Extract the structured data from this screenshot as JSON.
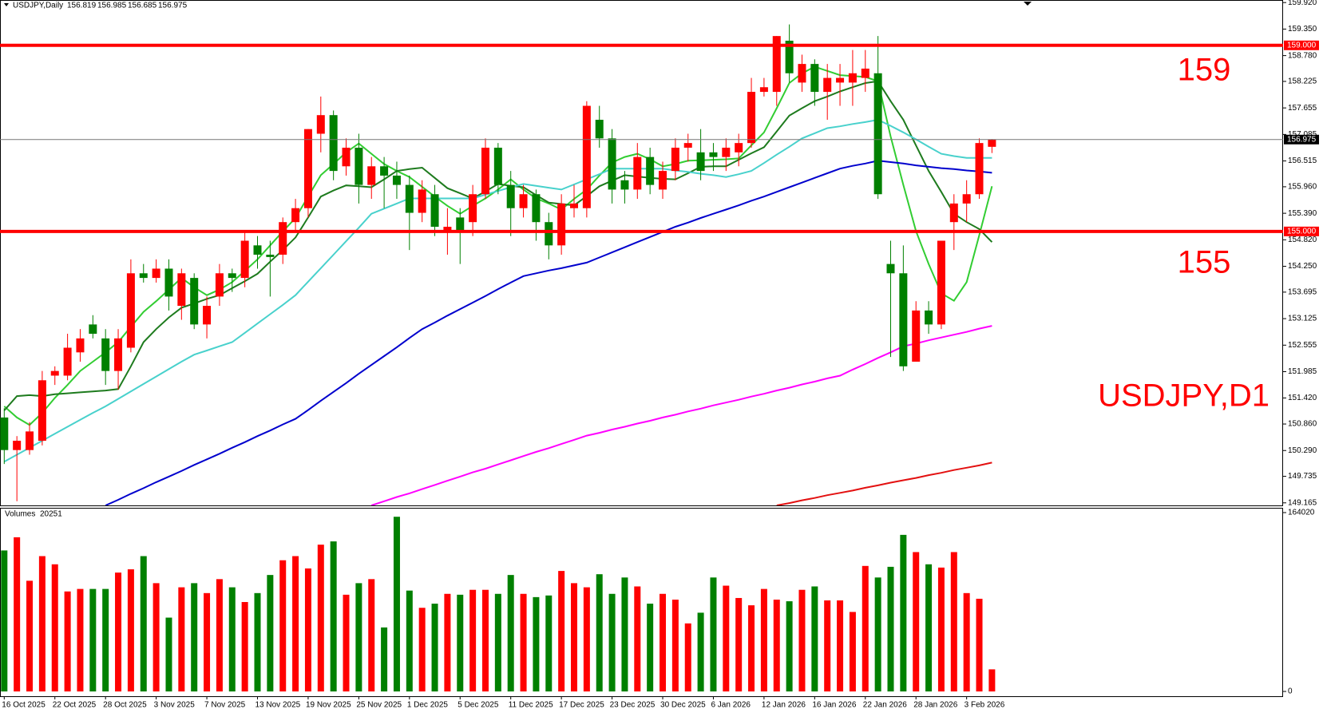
{
  "chart_data": {
    "type": "candlestick",
    "title": "USDJPY,Daily",
    "categories": [
      "16 Oct 2025",
      null,
      null,
      null,
      "22 Oct 2025",
      null,
      null,
      null,
      "28 Oct 2025",
      null,
      null,
      null,
      "3 Nov 2025",
      null,
      null,
      null,
      "7 Nov 2025",
      null,
      null,
      null,
      "13 Nov 2025",
      null,
      null,
      null,
      "19 Nov 2025",
      null,
      null,
      null,
      "25 Nov 2025",
      null,
      null,
      null,
      "1 Dec 2025",
      null,
      null,
      null,
      "5 Dec 2025",
      null,
      null,
      null,
      "11 Dec 2025",
      null,
      null,
      null,
      "17 Dec 2025",
      null,
      null,
      null,
      "23 Dec 2025",
      null,
      null,
      null,
      "30 Dec 2025",
      null,
      null,
      null,
      "6 Jan 2026",
      null,
      null,
      null,
      "12 Jan 2026",
      null,
      null,
      null,
      "16 Jan 2026",
      null,
      null,
      null,
      "22 Jan 2026",
      null,
      null,
      null,
      "28 Jan 2026",
      null,
      null,
      null,
      "3 Feb 2026",
      null,
      null
    ],
    "open": [
      151.0,
      150.3,
      150.3,
      150.5,
      151.9,
      151.9,
      152.4,
      153.0,
      152.7,
      152.0,
      152.5,
      154.1,
      154.0,
      154.2,
      153.4,
      154.0,
      153.0,
      153.6,
      154.1,
      154.0,
      154.7,
      154.5,
      154.5,
      155.2,
      155.5,
      157.1,
      157.5,
      156.4,
      156.8,
      156.0,
      156.4,
      156.2,
      156.0,
      155.4,
      155.8,
      155.0,
      155.3,
      155.2,
      155.8,
      156.8,
      156.0,
      155.5,
      155.8,
      155.2,
      154.7,
      155.5,
      155.5,
      157.4,
      157.0,
      156.1,
      155.9,
      156.6,
      155.9,
      156.3,
      156.8,
      156.7,
      156.7,
      156.6,
      156.7,
      156.9,
      158.0,
      158.0,
      159.1,
      158.2,
      158.6,
      158.0,
      158.2,
      158.2,
      158.3,
      158.4,
      154.3,
      154.1,
      152.2,
      153.3,
      153.0,
      155.2,
      155.6,
      155.8,
      156.819
    ],
    "high": [
      151.2,
      150.6,
      150.9,
      152.0,
      152.1,
      152.8,
      152.9,
      153.2,
      152.9,
      152.9,
      154.4,
      154.3,
      154.4,
      154.4,
      154.2,
      154.1,
      153.6,
      154.3,
      154.2,
      155.0,
      154.9,
      154.8,
      155.3,
      155.7,
      157.2,
      157.9,
      157.6,
      157.0,
      157.1,
      156.6,
      156.6,
      156.5,
      156.2,
      156.1,
      156.0,
      155.5,
      155.5,
      156.0,
      157.0,
      156.9,
      156.3,
      156.0,
      155.9,
      155.4,
      155.8,
      156.0,
      157.8,
      157.7,
      157.2,
      156.3,
      156.9,
      156.8,
      156.5,
      157.0,
      157.1,
      157.2,
      156.9,
      157.0,
      157.1,
      158.3,
      158.3,
      159.2,
      159.45,
      158.8,
      158.7,
      158.6,
      158.6,
      158.9,
      158.9,
      159.2,
      154.8,
      154.7,
      153.5,
      153.5,
      154.8,
      155.8,
      156.1,
      157.0,
      156.985
    ],
    "low": [
      150.0,
      149.2,
      150.2,
      150.4,
      151.7,
      151.8,
      152.2,
      152.7,
      151.7,
      151.6,
      152.4,
      153.9,
      153.9,
      153.3,
      153.1,
      152.9,
      152.7,
      153.4,
      153.7,
      153.8,
      154.2,
      153.6,
      154.3,
      155.0,
      155.3,
      156.7,
      156.1,
      156.2,
      155.6,
      155.7,
      155.5,
      155.7,
      154.6,
      155.2,
      154.9,
      154.5,
      154.3,
      154.9,
      155.7,
      155.8,
      154.9,
      155.3,
      154.8,
      154.4,
      154.5,
      155.3,
      155.3,
      156.8,
      155.6,
      155.6,
      155.7,
      155.8,
      155.7,
      156.1,
      156.5,
      156.1,
      156.3,
      156.3,
      156.4,
      156.8,
      157.9,
      157.7,
      158.2,
      158.0,
      157.7,
      157.4,
      157.7,
      157.7,
      158.0,
      155.7,
      152.3,
      152.0,
      152.2,
      152.8,
      152.9,
      154.6,
      155.2,
      155.7,
      156.685
    ],
    "close": [
      150.3,
      150.5,
      150.7,
      151.8,
      152.0,
      152.5,
      152.7,
      152.8,
      152.0,
      152.7,
      154.1,
      154.0,
      154.2,
      153.6,
      154.1,
      153.0,
      153.4,
      154.1,
      154.0,
      154.8,
      154.5,
      154.45,
      155.2,
      155.5,
      157.2,
      157.5,
      156.3,
      156.8,
      156.0,
      156.4,
      156.2,
      156.0,
      155.4,
      155.9,
      155.1,
      155.1,
      155.0,
      155.8,
      156.8,
      156.0,
      155.5,
      155.8,
      155.2,
      154.7,
      155.6,
      155.6,
      157.7,
      157.0,
      155.9,
      155.9,
      156.6,
      156.0,
      156.3,
      156.8,
      156.9,
      156.3,
      156.6,
      156.8,
      156.9,
      158.0,
      158.1,
      159.2,
      158.4,
      158.6,
      158.0,
      158.3,
      158.3,
      158.4,
      158.5,
      155.8,
      154.1,
      152.1,
      153.3,
      153.0,
      154.8,
      155.6,
      155.8,
      156.9,
      156.975
    ],
    "up_color": "#ff0000",
    "down_color": "#008000",
    "ylim": [
      149.11,
      159.975
    ],
    "yticks": [
      {
        "value": 159.92,
        "label": "159.920"
      },
      {
        "value": 159.35,
        "label": "159.350"
      },
      {
        "value": 158.78,
        "label": "158.780"
      },
      158.225,
      157.655,
      157.085,
      156.515,
      {
        "value": 155.96,
        "label": "155.960"
      },
      {
        "value": 155.39,
        "label": "155.390"
      },
      {
        "value": 154.82,
        "label": "154.820"
      },
      {
        "value": 154.25,
        "label": "154.250"
      },
      153.695,
      153.125,
      152.555,
      151.985,
      {
        "value": 151.42,
        "label": "151.420"
      },
      {
        "value": 150.86,
        "label": "150.860"
      },
      {
        "value": 150.29,
        "label": "150.290"
      },
      149.735,
      149.165
    ],
    "levels": [
      {
        "value": 159,
        "label": "159.000"
      },
      {
        "value": 155,
        "label": "155.000"
      }
    ],
    "level_color": "#ff0000",
    "indicators": [
      {
        "color": "#32cd32",
        "values": [
          151.24,
          151.0,
          150.84,
          151.1,
          151.42,
          151.7,
          152.0,
          152.2,
          152.4,
          152.62,
          152.95,
          153.27,
          153.5,
          153.75,
          154.0,
          153.8,
          153.63,
          153.75,
          153.91,
          154.15,
          154.4,
          154.7,
          155.0,
          155.29,
          155.75,
          156.21,
          156.45,
          156.7,
          156.89,
          156.67,
          156.45,
          156.3,
          156.17,
          155.96,
          155.75,
          155.55,
          155.38,
          155.55,
          155.71,
          155.9,
          156.12,
          155.9,
          155.71,
          155.6,
          155.47,
          155.7,
          155.9,
          156.2,
          156.48,
          156.6,
          156.67,
          156.55,
          156.4,
          156.45,
          156.52,
          156.53,
          156.54,
          156.55,
          156.57,
          156.85,
          157.13,
          157.65,
          158.19,
          158.4,
          158.54,
          158.45,
          158.36,
          158.34,
          158.32,
          158.23,
          157.04,
          156.0,
          155.01,
          154.3,
          153.67,
          153.51,
          153.91,
          154.92,
          155.97
        ]
      },
      {
        "color": "#1e7b1e",
        "values": [
          151.15,
          151.46,
          151.48,
          151.46,
          151.5,
          151.52,
          151.54,
          151.56,
          151.58,
          151.61,
          152.1,
          152.62,
          152.9,
          153.15,
          153.36,
          153.45,
          153.55,
          153.63,
          153.78,
          153.93,
          154.09,
          154.35,
          154.6,
          154.87,
          155.3,
          155.75,
          155.88,
          155.99,
          155.97,
          155.95,
          156.12,
          156.3,
          156.34,
          156.37,
          156.15,
          155.93,
          155.82,
          155.71,
          155.86,
          156.02,
          155.98,
          155.95,
          155.78,
          155.62,
          155.59,
          155.56,
          155.76,
          155.97,
          156.09,
          156.21,
          156.18,
          156.15,
          156.13,
          156.12,
          156.25,
          156.39,
          156.4,
          156.4,
          156.54,
          156.68,
          156.81,
          157.15,
          157.49,
          157.65,
          157.8,
          157.9,
          158.01,
          158.1,
          158.19,
          158.23,
          157.8,
          157.4,
          156.85,
          156.3,
          155.85,
          155.38,
          155.2,
          155.05,
          154.77
        ]
      },
      {
        "color": "#48d1cc",
        "values": [
          150.05,
          150.2,
          150.35,
          150.5,
          150.65,
          150.8,
          150.95,
          151.1,
          151.24,
          151.4,
          151.56,
          151.72,
          151.88,
          152.04,
          152.2,
          152.35,
          152.44,
          152.53,
          152.62,
          152.82,
          153.02,
          153.22,
          153.42,
          153.63,
          153.92,
          154.21,
          154.5,
          154.79,
          155.08,
          155.38,
          155.49,
          155.6,
          155.71,
          155.71,
          155.71,
          155.71,
          155.71,
          155.71,
          155.79,
          155.87,
          155.95,
          156.02,
          155.98,
          155.94,
          155.9,
          156.01,
          156.12,
          156.23,
          156.35,
          156.35,
          156.35,
          156.35,
          156.35,
          156.31,
          156.28,
          156.24,
          156.21,
          156.17,
          156.23,
          156.3,
          156.47,
          156.65,
          156.82,
          157.0,
          157.11,
          157.22,
          157.26,
          157.31,
          157.35,
          157.4,
          157.27,
          157.13,
          156.98,
          156.82,
          156.67,
          156.62,
          156.58,
          156.58,
          156.58
        ]
      },
      {
        "color": "#0000cd",
        "values": [
          null,
          null,
          null,
          null,
          null,
          null,
          null,
          null,
          149.11,
          149.23,
          149.36,
          149.48,
          149.61,
          149.73,
          149.85,
          149.98,
          150.1,
          150.22,
          150.35,
          150.47,
          150.6,
          150.72,
          150.85,
          150.97,
          151.16,
          151.36,
          151.55,
          151.74,
          151.94,
          152.13,
          152.32,
          152.51,
          152.71,
          152.9,
          153.04,
          153.19,
          153.33,
          153.47,
          153.61,
          153.76,
          153.9,
          154.04,
          154.1,
          154.16,
          154.21,
          154.27,
          154.33,
          154.44,
          154.55,
          154.66,
          154.77,
          154.88,
          154.99,
          155.1,
          155.19,
          155.29,
          155.38,
          155.47,
          155.56,
          155.66,
          155.75,
          155.85,
          155.95,
          156.05,
          156.15,
          156.25,
          156.35,
          156.41,
          156.46,
          156.52,
          156.49,
          156.46,
          156.42,
          156.39,
          156.36,
          156.34,
          156.31,
          156.29,
          156.26
        ]
      },
      {
        "color": "#ff00ff",
        "values": [
          null,
          null,
          null,
          null,
          null,
          null,
          null,
          null,
          null,
          null,
          null,
          null,
          null,
          null,
          null,
          null,
          null,
          null,
          null,
          null,
          null,
          null,
          null,
          null,
          null,
          null,
          null,
          null,
          null,
          149.11,
          149.2,
          149.29,
          149.37,
          149.46,
          149.55,
          149.64,
          149.73,
          149.82,
          149.9,
          149.99,
          150.08,
          150.17,
          150.26,
          150.34,
          150.43,
          150.52,
          150.61,
          150.67,
          150.74,
          150.8,
          150.87,
          150.93,
          151.0,
          151.06,
          151.13,
          151.19,
          151.26,
          151.32,
          151.38,
          151.45,
          151.51,
          151.58,
          151.64,
          151.71,
          151.77,
          151.84,
          151.9,
          152.03,
          152.15,
          152.28,
          152.4,
          152.53,
          152.59,
          152.66,
          152.72,
          152.78,
          152.84,
          152.91,
          152.97
        ]
      },
      {
        "color": "#e31010",
        "values": [
          null,
          null,
          null,
          null,
          null,
          null,
          null,
          null,
          null,
          null,
          null,
          null,
          null,
          null,
          null,
          null,
          null,
          null,
          null,
          null,
          null,
          null,
          null,
          null,
          null,
          null,
          null,
          null,
          null,
          null,
          null,
          null,
          null,
          null,
          null,
          null,
          null,
          null,
          null,
          null,
          null,
          null,
          null,
          null,
          null,
          null,
          null,
          null,
          null,
          null,
          null,
          null,
          null,
          null,
          null,
          null,
          null,
          null,
          null,
          null,
          null,
          149.11,
          149.16,
          149.22,
          149.27,
          149.33,
          149.38,
          149.43,
          149.49,
          149.54,
          149.6,
          149.65,
          149.7,
          149.76,
          149.81,
          149.87,
          149.92,
          149.97,
          150.03
        ]
      }
    ],
    "annotations": [
      "159",
      "155",
      "USDJPY,D1"
    ],
    "volume": {
      "name": "Volumes",
      "values": [
        129300,
        141400,
        101500,
        124100,
        116600,
        91700,
        94000,
        94000,
        94000,
        109000,
        112000,
        124100,
        99300,
        67700,
        95500,
        99300,
        90200,
        103000,
        95500,
        82000,
        90200,
        106800,
        120300,
        124100,
        112800,
        134600,
        137600,
        88700,
        99300,
        103000,
        58700,
        160200,
        92500,
        76700,
        80500,
        89500,
        88700,
        93200,
        93200,
        89500,
        106800,
        89500,
        86500,
        88000,
        110500,
        99300,
        95500,
        107500,
        89500,
        104500,
        96300,
        80500,
        89500,
        84200,
        62400,
        72200,
        104500,
        97000,
        85700,
        79000,
        94000,
        84200,
        82700,
        93200,
        96300,
        83500,
        83500,
        72900,
        115100,
        104500,
        114300,
        143600,
        127800,
        116600,
        113600,
        127800,
        90200,
        85000,
        20251
      ],
      "ylim": [
        0,
        164020
      ],
      "yticks": [
        164020,
        0
      ]
    }
  }
}
